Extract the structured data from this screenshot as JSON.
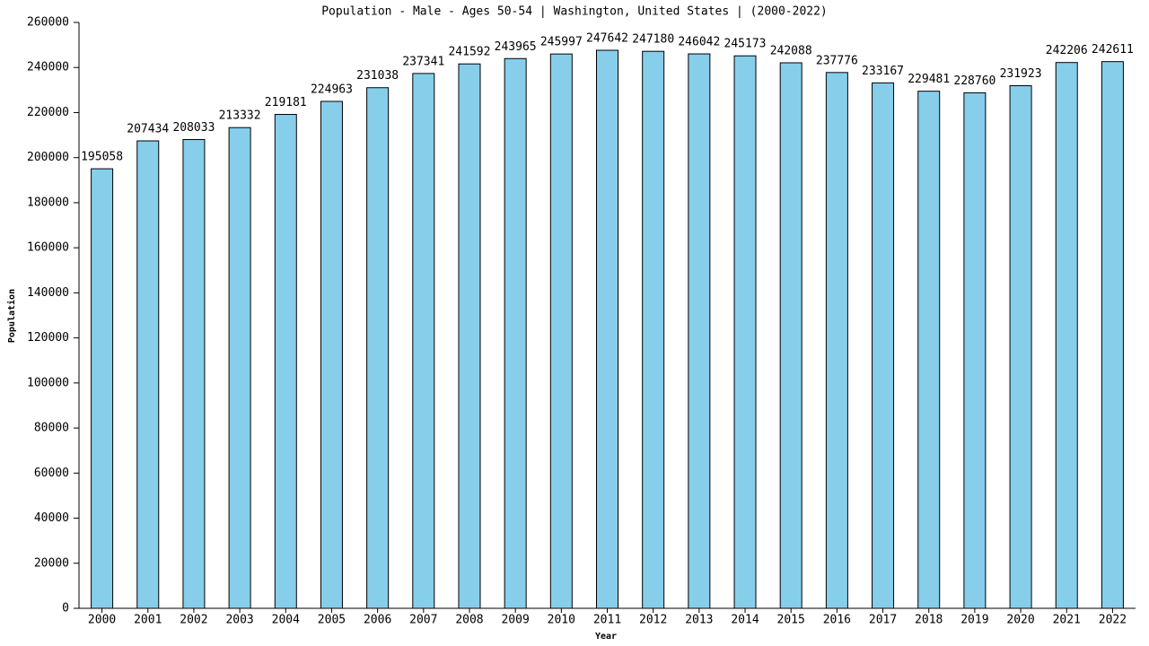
{
  "chart_data": {
    "type": "bar",
    "title": "Population - Male - Ages 50-54 | Washington, United States |  (2000-2022)",
    "x_label": "Year",
    "y_label": "Population",
    "categories": [
      "2000",
      "2001",
      "2002",
      "2003",
      "2004",
      "2005",
      "2006",
      "2007",
      "2008",
      "2009",
      "2010",
      "2011",
      "2012",
      "2013",
      "2014",
      "2015",
      "2016",
      "2017",
      "2018",
      "2019",
      "2020",
      "2021",
      "2022"
    ],
    "values": [
      195058,
      207434,
      208033,
      213332,
      219181,
      224963,
      231038,
      237341,
      241592,
      243965,
      245997,
      247642,
      247180,
      246042,
      245173,
      242088,
      237776,
      233167,
      229481,
      228760,
      231923,
      242206,
      242611
    ],
    "color": "#87ceeb",
    "ylim": [
      0,
      260000
    ],
    "yticks": [
      0,
      20000,
      40000,
      60000,
      80000,
      100000,
      120000,
      140000,
      160000,
      180000,
      200000,
      220000,
      240000,
      260000
    ],
    "grid": false
  }
}
